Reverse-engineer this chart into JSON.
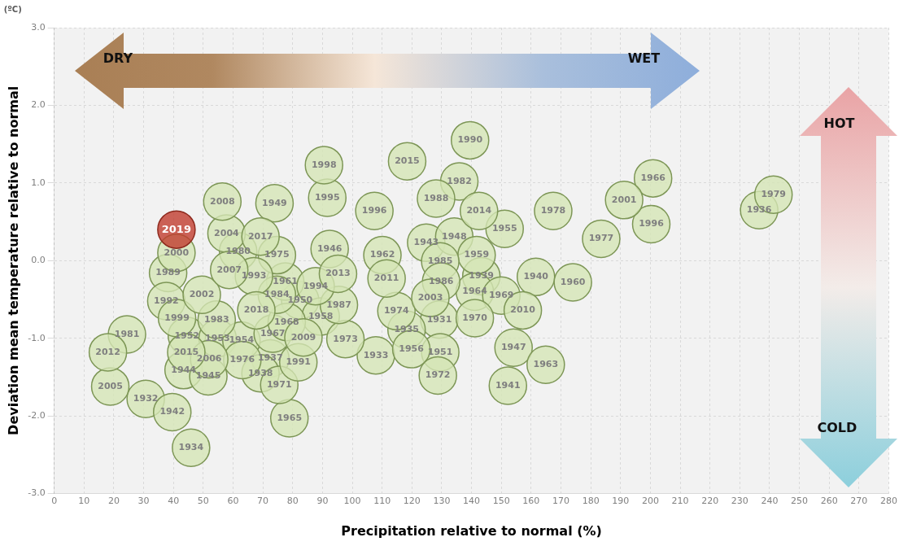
{
  "chart_data": {
    "type": "scatter",
    "xlabel": "Precipitation relative to normal (%)",
    "ylabel": "Deviation mean temperature relative to normal",
    "annotations": [
      "(ºC)",
      "DRY",
      "WET",
      "HOT",
      "COLD",
      {
        "text": "1931",
        "x": 129.2,
        "y": -0.76
      },
      {
        "text": "1932",
        "x": 30.7,
        "y": -1.78
      },
      {
        "text": "1933",
        "x": 107.9,
        "y": -1.22
      },
      {
        "text": "1934",
        "x": 45.9,
        "y": -2.41
      },
      {
        "text": "1935",
        "x": 118.2,
        "y": -0.89
      },
      {
        "text": "1936",
        "x": 236.5,
        "y": 0.65
      },
      {
        "text": "1937",
        "x": 72.5,
        "y": -1.26
      },
      {
        "text": "1938",
        "x": 69.2,
        "y": -1.45
      },
      {
        "text": "1939",
        "x": 143.3,
        "y": -0.2
      },
      {
        "text": "1940",
        "x": 161.6,
        "y": -0.21
      },
      {
        "text": "1941",
        "x": 152.2,
        "y": -1.61
      },
      {
        "text": "1942",
        "x": 39.6,
        "y": -1.95
      },
      {
        "text": "1943",
        "x": 124.8,
        "y": 0.23
      },
      {
        "text": "1944",
        "x": 43.4,
        "y": -1.41
      },
      {
        "text": "1945",
        "x": 51.7,
        "y": -1.49
      },
      {
        "text": "1946",
        "x": 92.4,
        "y": 0.15
      },
      {
        "text": "1947",
        "x": 154.1,
        "y": -1.12
      },
      {
        "text": "1948",
        "x": 134.2,
        "y": 0.31
      },
      {
        "text": "1949",
        "x": 73.9,
        "y": 0.74
      },
      {
        "text": "1950",
        "x": 82.5,
        "y": -0.51
      },
      {
        "text": "1951",
        "x": 129.5,
        "y": -1.18
      },
      {
        "text": "1952",
        "x": 44.5,
        "y": -0.97
      },
      {
        "text": "1953",
        "x": 54.8,
        "y": -1.0
      },
      {
        "text": "1954",
        "x": 62.8,
        "y": -1.03
      },
      {
        "text": "1955",
        "x": 151.1,
        "y": 0.41
      },
      {
        "text": "1956",
        "x": 119.8,
        "y": -1.14
      },
      {
        "text": "1958",
        "x": 89.4,
        "y": -0.72
      },
      {
        "text": "1959",
        "x": 141.7,
        "y": 0.07
      },
      {
        "text": "1960",
        "x": 174.0,
        "y": -0.28
      },
      {
        "text": "1961",
        "x": 77.5,
        "y": -0.27
      },
      {
        "text": "1962",
        "x": 110.1,
        "y": 0.07
      },
      {
        "text": "1963",
        "x": 164.9,
        "y": -1.34
      },
      {
        "text": "1964",
        "x": 141.1,
        "y": -0.4
      },
      {
        "text": "1965",
        "x": 78.9,
        "y": -2.03
      },
      {
        "text": "1966",
        "x": 200.9,
        "y": 1.06
      },
      {
        "text": "1967",
        "x": 73.3,
        "y": -0.94
      },
      {
        "text": "1968",
        "x": 78.0,
        "y": -0.79
      },
      {
        "text": "1969",
        "x": 150.0,
        "y": -0.45
      },
      {
        "text": "1970",
        "x": 141.1,
        "y": -0.74
      },
      {
        "text": "1971",
        "x": 75.5,
        "y": -1.6
      },
      {
        "text": "1972",
        "x": 128.7,
        "y": -1.48
      },
      {
        "text": "1973",
        "x": 97.7,
        "y": -1.01
      },
      {
        "text": "1974",
        "x": 114.8,
        "y": -0.65
      },
      {
        "text": "1975",
        "x": 74.7,
        "y": 0.07
      },
      {
        "text": "1976",
        "x": 63.1,
        "y": -1.28
      },
      {
        "text": "1977",
        "x": 183.5,
        "y": 0.28
      },
      {
        "text": "1978",
        "x": 167.4,
        "y": 0.64
      },
      {
        "text": "1979",
        "x": 241.3,
        "y": 0.85
      },
      {
        "text": "1980",
        "x": 61.7,
        "y": 0.12
      },
      {
        "text": "1981",
        "x": 24.4,
        "y": -0.95
      },
      {
        "text": "1982",
        "x": 135.9,
        "y": 1.02
      },
      {
        "text": "1983",
        "x": 54.5,
        "y": -0.76
      },
      {
        "text": "1984",
        "x": 74.7,
        "y": -0.44
      },
      {
        "text": "1985",
        "x": 129.5,
        "y": -0.01
      },
      {
        "text": "1986",
        "x": 129.8,
        "y": -0.27
      },
      {
        "text": "1987",
        "x": 95.5,
        "y": -0.57
      },
      {
        "text": "1988",
        "x": 128.1,
        "y": 0.8
      },
      {
        "text": "1989",
        "x": 38.2,
        "y": -0.16
      },
      {
        "text": "1990",
        "x": 139.5,
        "y": 1.55
      },
      {
        "text": "1991",
        "x": 81.9,
        "y": -1.31
      },
      {
        "text": "1992",
        "x": 37.6,
        "y": -0.52
      },
      {
        "text": "1993",
        "x": 67.0,
        "y": -0.2
      },
      {
        "text": "1994",
        "x": 87.7,
        "y": -0.33
      },
      {
        "text": "1995",
        "x": 91.6,
        "y": 0.81
      },
      {
        "text": "1996",
        "x": 107.4,
        "y": 0.64
      },
      {
        "text": "1996",
        "x": 200.3,
        "y": 0.47
      },
      {
        "text": "1998",
        "x": 90.5,
        "y": 1.23
      },
      {
        "text": "1999",
        "x": 41.2,
        "y": -0.74
      },
      {
        "text": "2000",
        "x": 41.0,
        "y": 0.1
      },
      {
        "text": "2001",
        "x": 191.2,
        "y": 0.78
      },
      {
        "text": "2002",
        "x": 49.5,
        "y": -0.44
      },
      {
        "text": "2003",
        "x": 126.2,
        "y": -0.48
      },
      {
        "text": "2004",
        "x": 57.8,
        "y": 0.35
      },
      {
        "text": "2005",
        "x": 18.8,
        "y": -1.62
      },
      {
        "text": "2006",
        "x": 52.0,
        "y": -1.27
      },
      {
        "text": "2007",
        "x": 58.7,
        "y": -0.12
      },
      {
        "text": "2008",
        "x": 56.4,
        "y": 0.76
      },
      {
        "text": "2009",
        "x": 83.6,
        "y": -0.99
      },
      {
        "text": "2010",
        "x": 157.2,
        "y": -0.64
      },
      {
        "text": "2011",
        "x": 111.5,
        "y": -0.23
      },
      {
        "text": "2012",
        "x": 18.0,
        "y": -1.18
      },
      {
        "text": "2013",
        "x": 95.2,
        "y": -0.17
      },
      {
        "text": "2014",
        "x": 142.5,
        "y": 0.64
      },
      {
        "text": "2015",
        "x": 118.4,
        "y": 1.28
      },
      {
        "text": "2015",
        "x": 44.3,
        "y": -1.18
      },
      {
        "text": "2017",
        "x": 69.2,
        "y": 0.31
      },
      {
        "text": "2018",
        "x": 67.8,
        "y": -0.64
      },
      {
        "text": "2019",
        "x": 41.0,
        "y": 0.4
      }
    ],
    "x": [
      129.2,
      30.7,
      107.9,
      45.9,
      118.2,
      236.5,
      72.5,
      69.2,
      143.3,
      161.6,
      152.2,
      39.6,
      124.8,
      43.4,
      51.7,
      92.4,
      154.1,
      134.2,
      73.9,
      82.5,
      129.5,
      44.5,
      54.8,
      62.8,
      151.1,
      119.8,
      89.4,
      141.7,
      174.0,
      77.5,
      110.1,
      164.9,
      141.1,
      78.9,
      200.9,
      73.3,
      78.0,
      150.0,
      141.1,
      75.5,
      128.7,
      97.7,
      114.8,
      74.7,
      63.1,
      183.5,
      167.4,
      241.3,
      61.7,
      24.4,
      135.9,
      54.5,
      74.7,
      129.5,
      129.8,
      95.5,
      128.1,
      38.2,
      139.5,
      81.9,
      37.6,
      67.0,
      87.7,
      91.6,
      107.4,
      200.3,
      90.5,
      41.2,
      41.0,
      191.2,
      49.5,
      126.2,
      57.8,
      18.8,
      52.0,
      58.7,
      56.4,
      83.6,
      157.2,
      111.5,
      18.0,
      95.2,
      142.5,
      118.4,
      44.3,
      69.2,
      67.8,
      41.0
    ],
    "values": [
      -0.76,
      -1.78,
      -1.22,
      -2.41,
      -0.89,
      0.65,
      -1.26,
      -1.45,
      -0.2,
      -0.21,
      -1.61,
      -1.95,
      0.23,
      -1.41,
      -1.49,
      0.15,
      -1.12,
      0.31,
      0.74,
      -0.51,
      -1.18,
      -0.97,
      -1.0,
      -1.03,
      0.41,
      -1.14,
      -0.72,
      0.07,
      -0.28,
      -0.27,
      0.07,
      -1.34,
      -0.4,
      -2.03,
      1.06,
      -0.94,
      -0.79,
      -0.45,
      -0.74,
      -1.6,
      -1.48,
      -1.01,
      -0.65,
      0.07,
      -1.28,
      0.28,
      0.64,
      0.85,
      0.12,
      -0.95,
      1.02,
      -0.76,
      -0.44,
      -0.01,
      -0.27,
      -0.57,
      0.8,
      -0.16,
      1.55,
      -1.31,
      -0.52,
      -0.2,
      -0.33,
      0.81,
      0.64,
      0.47,
      1.23,
      -0.74,
      0.1,
      0.78,
      -0.44,
      -0.48,
      0.35,
      -1.62,
      -1.27,
      -0.12,
      0.76,
      -0.99,
      -0.64,
      -0.23,
      -1.18,
      -0.17,
      0.64,
      1.28,
      -1.18,
      0.31,
      -0.64,
      0.4
    ],
    "colors": [
      "#d5e6b5",
      "#d5e6b5",
      "#d5e6b5",
      "#d5e6b5",
      "#d5e6b5",
      "#d5e6b5",
      "#d5e6b5",
      "#d5e6b5",
      "#d5e6b5",
      "#d5e6b5",
      "#d5e6b5",
      "#d5e6b5",
      "#d5e6b5",
      "#d5e6b5",
      "#d5e6b5",
      "#d5e6b5",
      "#d5e6b5",
      "#d5e6b5",
      "#d5e6b5",
      "#d5e6b5",
      "#d5e6b5",
      "#d5e6b5",
      "#d5e6b5",
      "#d5e6b5",
      "#d5e6b5",
      "#d5e6b5",
      "#d5e6b5",
      "#d5e6b5",
      "#d5e6b5",
      "#d5e6b5",
      "#d5e6b5",
      "#d5e6b5",
      "#d5e6b5",
      "#d5e6b5",
      "#d5e6b5",
      "#d5e6b5",
      "#d5e6b5",
      "#d5e6b5",
      "#d5e6b5",
      "#d5e6b5",
      "#d5e6b5",
      "#d5e6b5",
      "#d5e6b5",
      "#d5e6b5",
      "#d5e6b5",
      "#d5e6b5",
      "#d5e6b5",
      "#d5e6b5",
      "#d5e6b5",
      "#d5e6b5",
      "#d5e6b5",
      "#d5e6b5",
      "#d5e6b5",
      "#d5e6b5",
      "#d5e6b5",
      "#d5e6b5",
      "#d5e6b5",
      "#d5e6b5",
      "#d5e6b5",
      "#d5e6b5",
      "#d5e6b5",
      "#d5e6b5",
      "#d5e6b5",
      "#d5e6b5",
      "#d5e6b5",
      "#d5e6b5",
      "#d5e6b5",
      "#d5e6b5",
      "#d5e6b5",
      "#d5e6b5",
      "#d5e6b5",
      "#d5e6b5",
      "#d5e6b5",
      "#d5e6b5",
      "#d5e6b5",
      "#d5e6b5",
      "#d5e6b5",
      "#d5e6b5",
      "#d5e6b5",
      "#d5e6b5",
      "#d5e6b5",
      "#d5e6b5",
      "#d5e6b5",
      "#d5e6b5",
      "#d5e6b5",
      "#d5e6b5",
      "#d5e6b5",
      "#c0392b"
    ],
    "marker": "circle",
    "grid": true,
    "xlim": [
      0,
      280
    ],
    "xticks": [
      0,
      10,
      20,
      30,
      40,
      50,
      60,
      70,
      80,
      90,
      100,
      110,
      120,
      130,
      140,
      150,
      160,
      170,
      180,
      190,
      200,
      210,
      220,
      230,
      240,
      250,
      260,
      270,
      280
    ],
    "ylim": [
      -3,
      3
    ],
    "yticks": [
      {
        "value": -3,
        "label": "-3.0"
      },
      {
        "value": -2,
        "label": "-2.0"
      },
      {
        "value": -1,
        "label": "-1.0"
      },
      {
        "value": 0,
        "label": "0.0"
      },
      {
        "value": 1,
        "label": "1.0"
      },
      {
        "value": 2,
        "label": "2.0"
      },
      {
        "value": 3,
        "label": "3.0"
      }
    ]
  }
}
